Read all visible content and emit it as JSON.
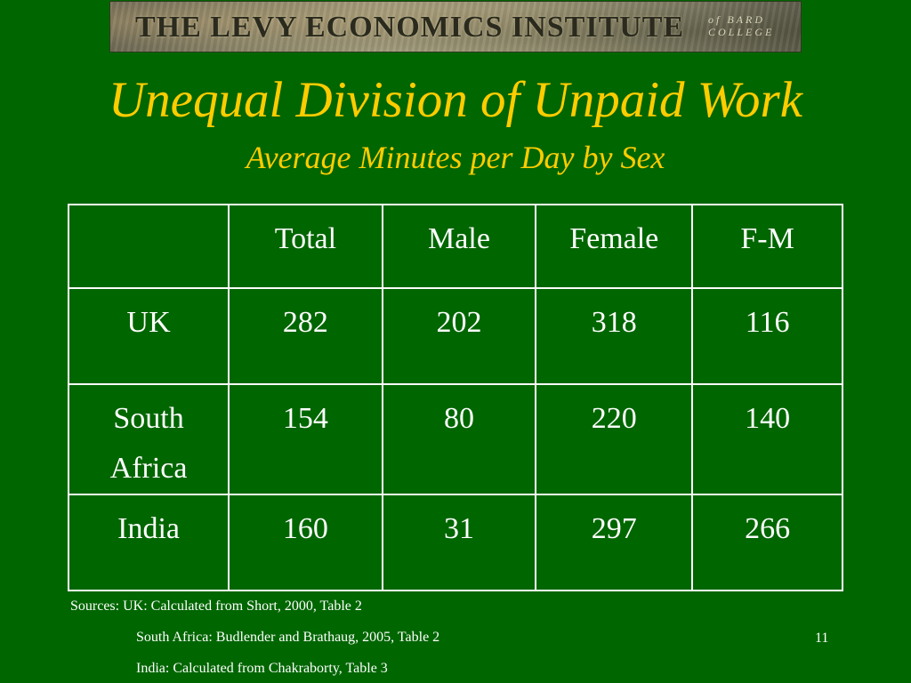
{
  "banner": {
    "title": "THE LEVY ECONOMICS INSTITUTE",
    "subtitle": "of BARD COLLEGE"
  },
  "slide": {
    "title": "Unequal Division of Unpaid Work",
    "subtitle": "Average Minutes per Day by Sex",
    "page_number": "11"
  },
  "table": {
    "headers": [
      "",
      "Total",
      "Male",
      "Female",
      "F-M"
    ],
    "rows": [
      {
        "label": "UK",
        "values": [
          "282",
          "202",
          "318",
          "116"
        ]
      },
      {
        "label": "South Africa",
        "values": [
          "154",
          "80",
          "220",
          "140"
        ]
      },
      {
        "label": "India",
        "values": [
          "160",
          "31",
          "297",
          "266"
        ]
      }
    ]
  },
  "sources": {
    "line1": "Sources: UK: Calculated from Short, 2000, Table 2",
    "line2": "South Africa: Budlender and Brathaug, 2005, Table 2",
    "line3": "India: Calculated from Chakraborty, Table 3"
  }
}
